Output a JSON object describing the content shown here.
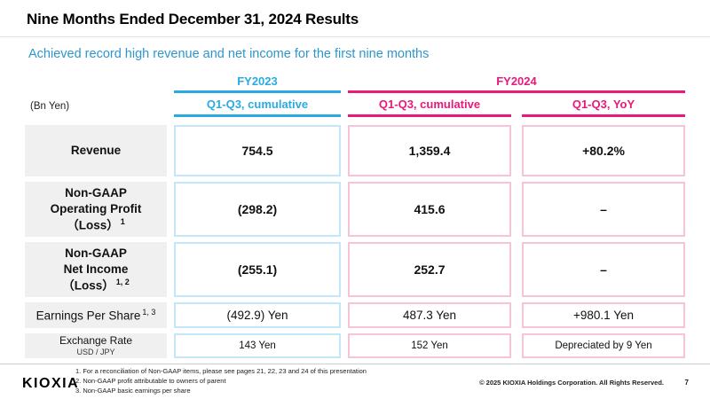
{
  "slide": {
    "title": "Nine Months Ended December 31, 2024 Results",
    "subtitle": "Achieved record high revenue and net income for the first nine months",
    "unit_label": "(Bn Yen)",
    "logo_text": "KIOXIA",
    "copyright": "© 2025 KIOXIA Holdings Corporation. All Rights Reserved.",
    "page_number": "7"
  },
  "colors": {
    "fy2023_cyan": "#29abe2",
    "fy2024_magenta": "#e8197b",
    "subtitle_blue": "#2d96cc",
    "label_box_gray": "#f0f0f0",
    "cyan_cell_border": "#c3e7f8",
    "pink_cell_border": "#f7c3d9"
  },
  "table": {
    "col_groups": [
      {
        "label": "FY2023"
      },
      {
        "label": "FY2024"
      }
    ],
    "col_headers": [
      "Q1-Q3, cumulative",
      "Q1-Q3, cumulative",
      "Q1-Q3, YoY"
    ],
    "rows": [
      {
        "label": "Revenue",
        "sup": "",
        "values": [
          "754.5",
          "1,359.4",
          "+80.2%"
        ]
      },
      {
        "label": "Non-GAAP\nOperating Profit\n（Loss）",
        "sup": "1",
        "values": [
          "(298.2)",
          "415.6",
          "–"
        ]
      },
      {
        "label": "Non-GAAP\nNet Income\n（Loss）",
        "sup": "1, 2",
        "values": [
          "(255.1)",
          "252.7",
          "–"
        ]
      },
      {
        "label": "Earnings Per Share",
        "sup": "1, 3",
        "values": [
          "(492.9) Yen",
          "487.3 Yen",
          "+980.1 Yen"
        ]
      },
      {
        "label": "Exchange Rate",
        "sublabel": "USD / JPY",
        "values": [
          "143 Yen",
          "152 Yen",
          "Depreciated by 9 Yen"
        ]
      }
    ]
  },
  "footnotes": [
    "1. For a reconciliation of Non-GAAP items, please see pages 21, 22, 23 and 24 of this presentation",
    "2. Non-GAAP profit attributable to owners of parent",
    "3. Non-GAAP basic earnings per share"
  ]
}
